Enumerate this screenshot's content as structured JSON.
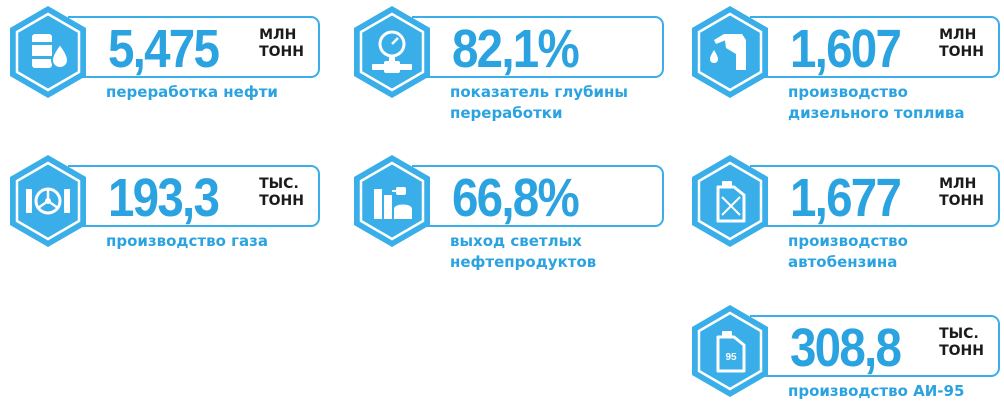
{
  "colors": {
    "accent": "#2aa3e0",
    "hex_fill": "#3aaee8",
    "unit_text": "#1b1b1b"
  },
  "stats": [
    {
      "value": "5,475",
      "unit": [
        "МЛН",
        "ТОНН"
      ],
      "label": [
        "переработка нефти"
      ],
      "icon": "oil-barrel-drop-icon"
    },
    {
      "value": "82,1%",
      "unit": [],
      "label": [
        "показатель глубины",
        "переработки"
      ],
      "icon": "pressure-gauge-pipe-icon"
    },
    {
      "value": "1,607",
      "unit": [
        "МЛН",
        "ТОНН"
      ],
      "label": [
        "производство",
        "дизельного топлива"
      ],
      "icon": "fuel-nozzle-icon"
    },
    {
      "value": "193,3",
      "unit": [
        "ТЫС.",
        "ТОНН"
      ],
      "label": [
        "производство газа"
      ],
      "icon": "gas-valve-wheel-icon"
    },
    {
      "value": "66,8%",
      "unit": [],
      "label": [
        "выход светлых",
        "нефтепродуктов"
      ],
      "icon": "refinery-tanks-icon"
    },
    {
      "value": "1,677",
      "unit": [
        "МЛН",
        "ТОНН"
      ],
      "label": [
        "производство",
        "автобензина"
      ],
      "icon": "jerrycan-icon"
    },
    {
      "value": "308,8",
      "unit": [
        "ТЫС.",
        "ТОНН"
      ],
      "label": [
        "производство АИ-95"
      ],
      "icon": "jerrycan-95-icon",
      "icon_text": "95"
    }
  ]
}
